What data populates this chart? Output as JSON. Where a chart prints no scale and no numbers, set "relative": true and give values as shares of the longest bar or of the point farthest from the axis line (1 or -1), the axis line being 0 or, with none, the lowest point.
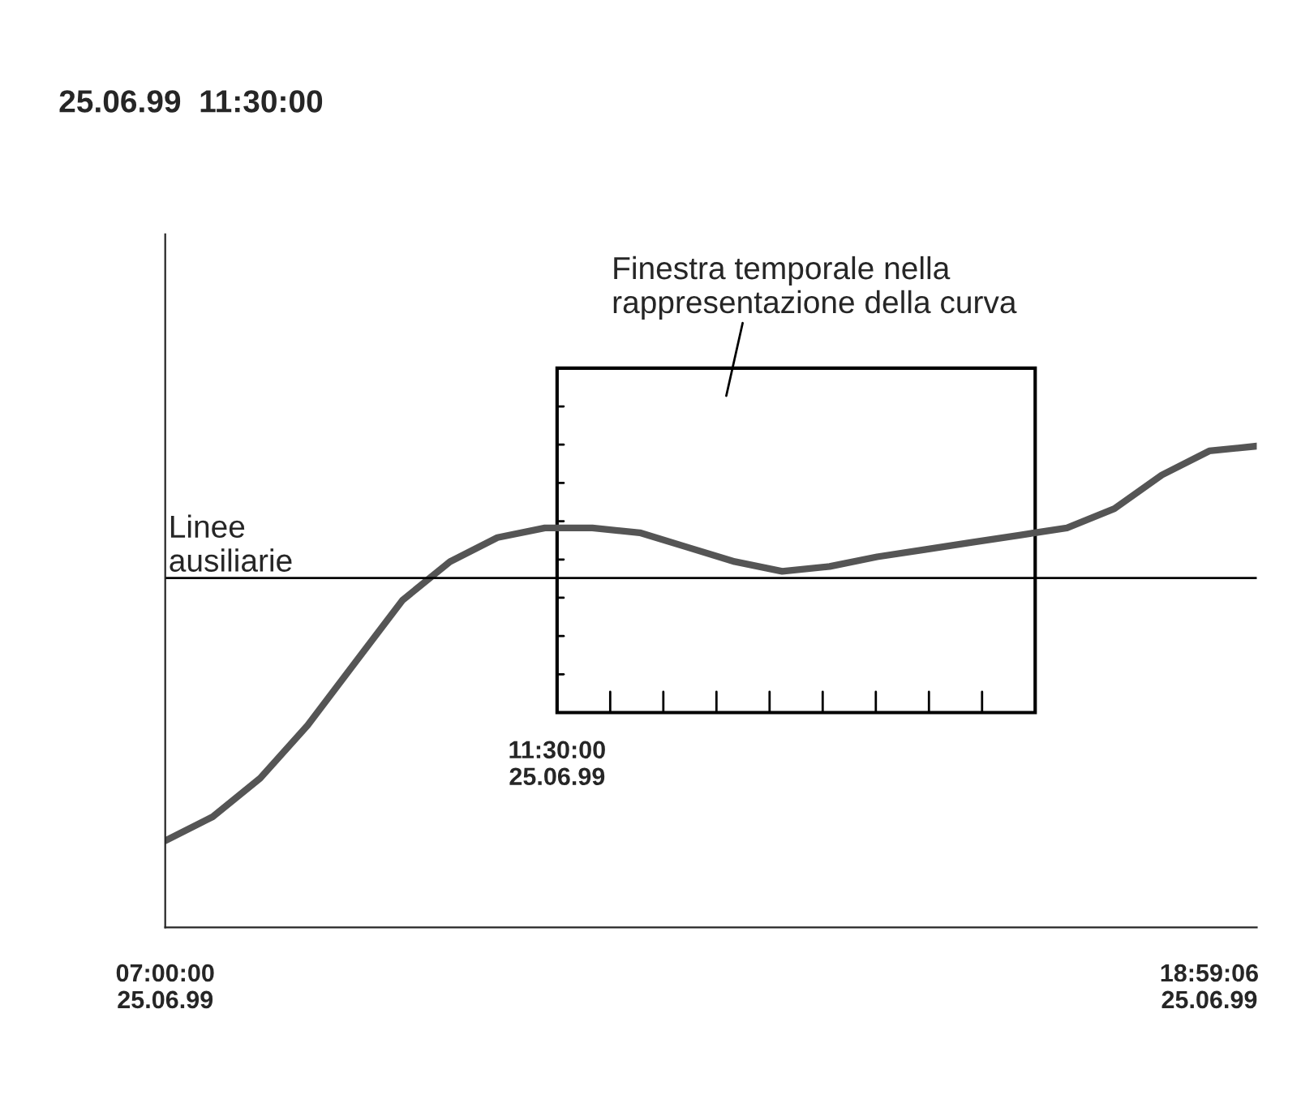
{
  "chart_data": {
    "type": "line",
    "title": "25.06.99  11:30:00",
    "relative": true,
    "categories": [
      "07:00:00\n25.06.99",
      null,
      null,
      null,
      null,
      null,
      null,
      null,
      null,
      null,
      null,
      null,
      null,
      null,
      null,
      null,
      null,
      null,
      null,
      null,
      null,
      null,
      "18:59:06\n25.06.99",
      null
    ],
    "series": [
      {
        "color": "#555555",
        "values": [
          0.18,
          0.23,
          0.31,
          0.42,
          0.55,
          0.68,
          0.76,
          0.81,
          0.83,
          0.83,
          0.82,
          0.79,
          0.76,
          0.74,
          0.75,
          0.77,
          0.785,
          0.8,
          0.815,
          0.83,
          0.87,
          0.94,
          0.99,
          1.0
        ]
      }
    ],
    "ref_lines": [
      {
        "axis": "y",
        "value": 0.726,
        "label": "Linee\nausiliarie",
        "color": "#000000"
      }
    ],
    "annotations": [
      "Finestra temporale nella\nrappresentazione della curva",
      "11:30:00\n25.06.99"
    ],
    "grid": false,
    "legend": false,
    "marker": "none",
    "line_style": "solid"
  }
}
